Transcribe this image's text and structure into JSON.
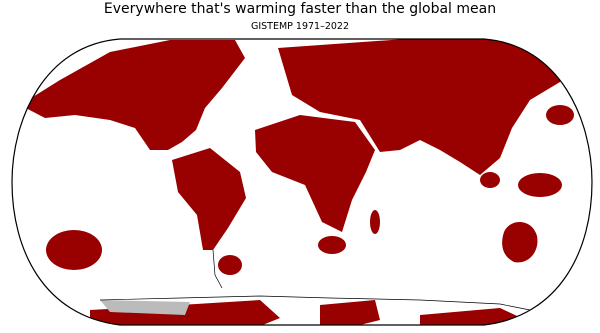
{
  "header": {
    "title": "Everywhere that's warming faster than the global mean",
    "subtitle": "GISTEMP 1971–2022"
  }
}
